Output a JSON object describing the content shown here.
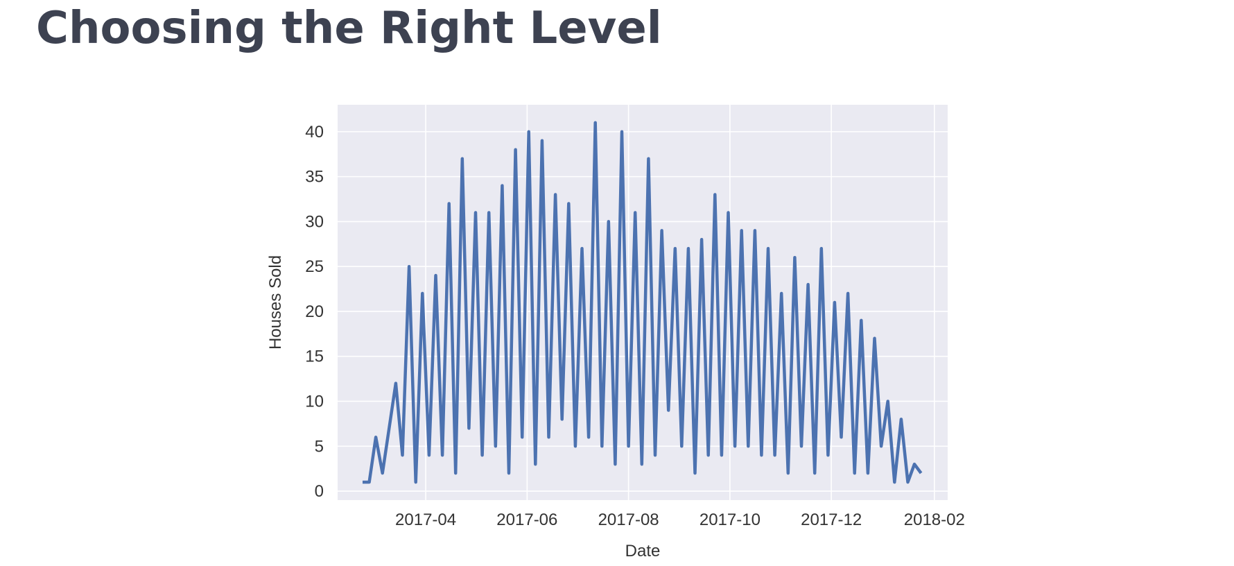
{
  "header": {
    "title": "Choosing the Right Level"
  },
  "chart_data": {
    "type": "line",
    "xlabel": "Date",
    "ylabel": "Houses Sold",
    "x": [
      "2017-02-22",
      "2017-02-26",
      "2017-03-02",
      "2017-03-06",
      "2017-03-10",
      "2017-03-14",
      "2017-03-18",
      "2017-03-22",
      "2017-03-26",
      "2017-03-30",
      "2017-04-03",
      "2017-04-07",
      "2017-04-11",
      "2017-04-15",
      "2017-04-19",
      "2017-04-23",
      "2017-04-27",
      "2017-05-01",
      "2017-05-05",
      "2017-05-09",
      "2017-05-13",
      "2017-05-17",
      "2017-05-21",
      "2017-05-25",
      "2017-05-29",
      "2017-06-02",
      "2017-06-06",
      "2017-06-10",
      "2017-06-14",
      "2017-06-18",
      "2017-06-22",
      "2017-06-26",
      "2017-06-30",
      "2017-07-04",
      "2017-07-08",
      "2017-07-12",
      "2017-07-16",
      "2017-07-20",
      "2017-07-24",
      "2017-07-28",
      "2017-08-01",
      "2017-08-05",
      "2017-08-09",
      "2017-08-13",
      "2017-08-17",
      "2017-08-21",
      "2017-08-25",
      "2017-08-29",
      "2017-09-02",
      "2017-09-06",
      "2017-09-10",
      "2017-09-14",
      "2017-09-18",
      "2017-09-22",
      "2017-09-26",
      "2017-09-30",
      "2017-10-04",
      "2017-10-08",
      "2017-10-12",
      "2017-10-16",
      "2017-10-20",
      "2017-10-24",
      "2017-10-28",
      "2017-11-01",
      "2017-11-05",
      "2017-11-09",
      "2017-11-13",
      "2017-11-17",
      "2017-11-21",
      "2017-11-25",
      "2017-11-29",
      "2017-12-03",
      "2017-12-07",
      "2017-12-11",
      "2017-12-15",
      "2017-12-19",
      "2017-12-23",
      "2017-12-27",
      "2017-12-31",
      "2018-01-04",
      "2018-01-08",
      "2018-01-12",
      "2018-01-16",
      "2018-01-20",
      "2018-01-24"
    ],
    "series": [
      {
        "name": "Houses Sold",
        "color": "#4c72b0",
        "values": [
          1,
          1,
          6,
          2,
          7,
          12,
          4,
          25,
          1,
          22,
          4,
          24,
          4,
          32,
          2,
          37,
          7,
          31,
          4,
          31,
          5,
          34,
          2,
          38,
          6,
          40,
          3,
          39,
          6,
          33,
          8,
          32,
          5,
          27,
          6,
          41,
          5,
          30,
          3,
          40,
          5,
          31,
          3,
          37,
          4,
          29,
          9,
          27,
          5,
          27,
          2,
          28,
          4,
          33,
          4,
          31,
          5,
          29,
          5,
          29,
          4,
          27,
          4,
          22,
          2,
          26,
          5,
          23,
          2,
          27,
          4,
          21,
          6,
          22,
          2,
          19,
          2,
          17,
          5,
          10,
          1,
          8,
          1,
          3,
          2
        ]
      }
    ],
    "xlim": [
      "2017-02-07",
      "2018-02-09"
    ],
    "xticks": [
      "2017-04",
      "2017-06",
      "2017-08",
      "2017-10",
      "2017-12",
      "2018-02"
    ],
    "ylim": [
      -1,
      43
    ],
    "yticks": [
      0,
      5,
      10,
      15,
      20,
      25,
      30,
      35,
      40
    ],
    "grid": true
  }
}
